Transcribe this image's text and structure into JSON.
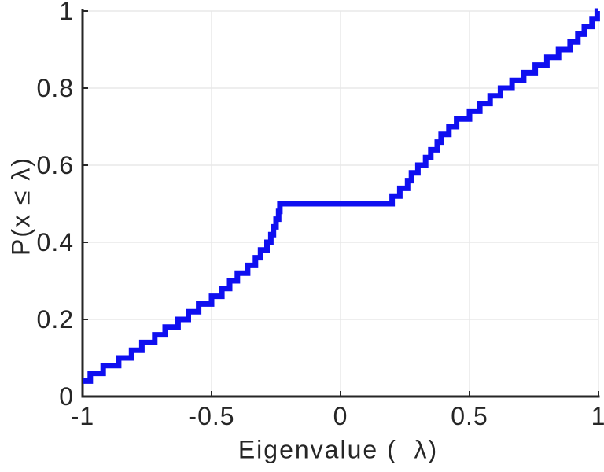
{
  "figure": {
    "background": "#ffffff"
  },
  "chart_data": {
    "type": "step",
    "subtype": "empirical-cdf",
    "title": "",
    "xlabel": "Eigenvalue (  λ)",
    "ylabel": "P(x ≤ λ)",
    "xlim": [
      -1,
      1
    ],
    "ylim": [
      0,
      1
    ],
    "grid": true,
    "legend_position": "none",
    "line_color": "#0f0ff0",
    "line_width": 7,
    "axis_color": "#262626",
    "grid_color": "#e8e8e8",
    "tick_label_color": "#262626",
    "n_points": 50,
    "step_height": 0.02,
    "cdf_start_value": 0.04,
    "plateau_value": 0.5,
    "plateau_x_range": [
      -0.235,
      0.2
    ],
    "eigenvalues": [
      -1.0,
      -1.0,
      -0.97,
      -0.92,
      -0.86,
      -0.81,
      -0.77,
      -0.72,
      -0.68,
      -0.63,
      -0.59,
      -0.55,
      -0.5,
      -0.46,
      -0.43,
      -0.4,
      -0.36,
      -0.33,
      -0.31,
      -0.285,
      -0.27,
      -0.26,
      -0.25,
      -0.24,
      -0.235,
      0.2,
      0.23,
      0.26,
      0.275,
      0.3,
      0.33,
      0.35,
      0.375,
      0.39,
      0.42,
      0.45,
      0.5,
      0.54,
      0.58,
      0.62,
      0.665,
      0.71,
      0.755,
      0.8,
      0.845,
      0.89,
      0.92,
      0.945,
      0.975,
      0.995
    ],
    "xticks": [
      {
        "value": -1,
        "label": "-1"
      },
      {
        "value": -0.5,
        "label": "-0.5"
      },
      {
        "value": 0,
        "label": "0"
      },
      {
        "value": 0.5,
        "label": "0.5"
      },
      {
        "value": 1,
        "label": "1"
      }
    ],
    "yticks": [
      {
        "value": 0,
        "label": "0"
      },
      {
        "value": 0.2,
        "label": "0.2"
      },
      {
        "value": 0.4,
        "label": "0.4"
      },
      {
        "value": 0.6,
        "label": "0.6"
      },
      {
        "value": 0.8,
        "label": "0.8"
      },
      {
        "value": 1,
        "label": "1"
      }
    ]
  }
}
